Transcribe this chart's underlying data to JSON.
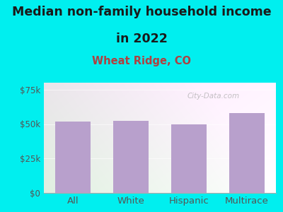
{
  "title_line1": "Median non-family household income",
  "title_line2": "in 2022",
  "subtitle": "Wheat Ridge, CO",
  "categories": [
    "All",
    "White",
    "Hispanic",
    "Multirace"
  ],
  "values": [
    52000,
    52500,
    50000,
    58000
  ],
  "bar_color": "#b8a0cc",
  "background_color": "#00efef",
  "plot_bg_color_topleft": "#d8f0d8",
  "plot_bg_color_topright": "#f0f8f0",
  "plot_bg_color_bottomleft": "#e8f8e8",
  "plot_bg_color_bottomright": "#ffffff",
  "title_color": "#1a1a1a",
  "subtitle_color": "#b04040",
  "tick_color": "#555555",
  "label_color": "#555555",
  "ytick_labels": [
    "$0",
    "$25k",
    "$50k",
    "$75k"
  ],
  "ytick_values": [
    0,
    25000,
    50000,
    75000
  ],
  "ylim": [
    0,
    80000
  ],
  "watermark": "City-Data.com",
  "title_fontsize": 12.5,
  "subtitle_fontsize": 10.5,
  "tick_fontsize": 8.5,
  "xlabel_fontsize": 9.5
}
